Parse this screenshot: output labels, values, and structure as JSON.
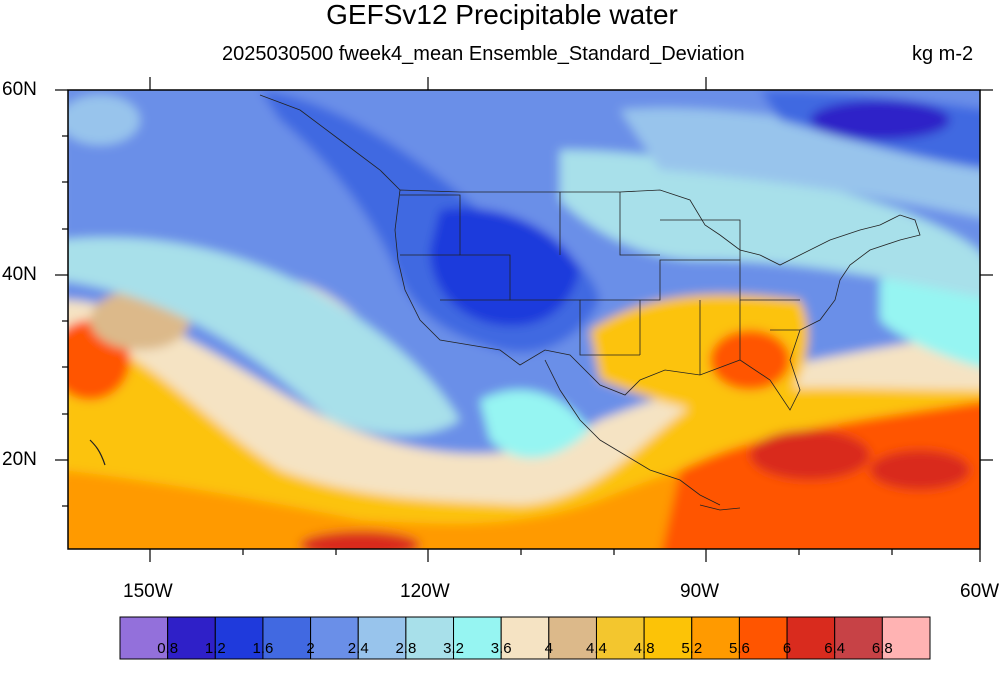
{
  "title": "GEFSv12 Precipitable water",
  "subtitle": "2025030500 fweek4_mean Ensemble_Standard_Deviation",
  "units": "kg m-2",
  "lat_labels": [
    "60N",
    "40N",
    "20N"
  ],
  "lon_labels": [
    "150W",
    "120W",
    "90W",
    "60W"
  ],
  "colorbar": {
    "labels": [
      "0.8",
      "1.2",
      "1.6",
      "2",
      "2.4",
      "2.8",
      "3.2",
      "3.6",
      "4",
      "4.4",
      "4.8",
      "5.2",
      "5.6",
      "6",
      "6.4",
      "6.8"
    ],
    "colors": [
      "#9370db",
      "#2f20c8",
      "#1f3adc",
      "#4169e1",
      "#6a8fe8",
      "#98c4ec",
      "#a8e0ea",
      "#96f5f2",
      "#f5e3c3",
      "#dcb98a",
      "#f3c62e",
      "#fcc307",
      "#ff9a00",
      "#ff5500",
      "#d92b1e",
      "#c74246",
      "#ffb3b3"
    ]
  },
  "map": {
    "lat_range": [
      10,
      60
    ],
    "lon_range": [
      -160,
      -60
    ]
  }
}
